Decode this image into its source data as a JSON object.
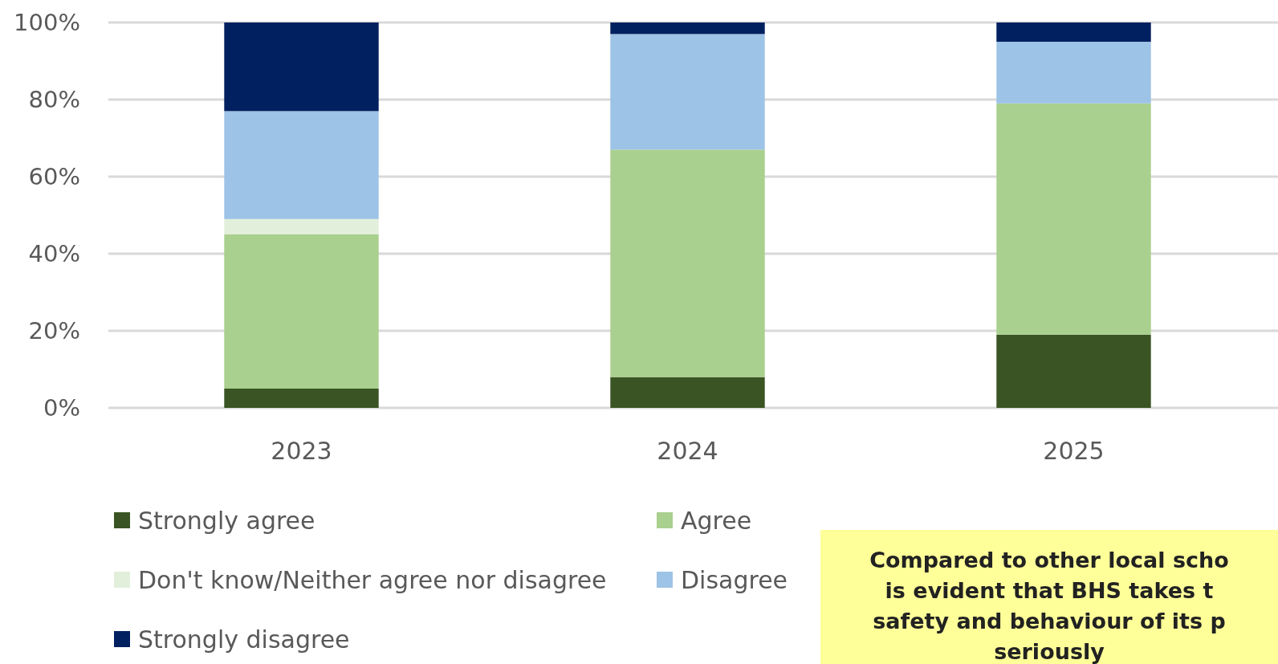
{
  "chart_data": {
    "type": "bar",
    "stacked": true,
    "categories": [
      "2023",
      "2024",
      "2025"
    ],
    "series": [
      {
        "name": "Strongly agree",
        "color": "#3a5423",
        "values": [
          5,
          8,
          19
        ]
      },
      {
        "name": "Agree",
        "color": "#a9d08e",
        "values": [
          40,
          59,
          60
        ]
      },
      {
        "name": "Don't know/Neither agree nor disagree",
        "color": "#e2efda",
        "values": [
          4,
          0,
          0
        ]
      },
      {
        "name": "Disagree",
        "color": "#9dc3e6",
        "values": [
          28,
          30,
          16
        ]
      },
      {
        "name": "Strongly disagree",
        "color": "#002060",
        "values": [
          23,
          3,
          5
        ]
      }
    ],
    "ylim": [
      0,
      100
    ],
    "yticks": [
      {
        "value": 0,
        "label": "0%"
      },
      {
        "value": 20,
        "label": "20%"
      },
      {
        "value": 40,
        "label": "40%"
      },
      {
        "value": 60,
        "label": "60%"
      },
      {
        "value": 80,
        "label": "80%"
      },
      {
        "value": 100,
        "label": "100%"
      }
    ],
    "grid": "y",
    "legend": "bottom",
    "annotations": [
      "Compared to other local scho",
      "is evident that BHS takes t",
      "safety and behaviour of its p",
      "seriously"
    ]
  }
}
